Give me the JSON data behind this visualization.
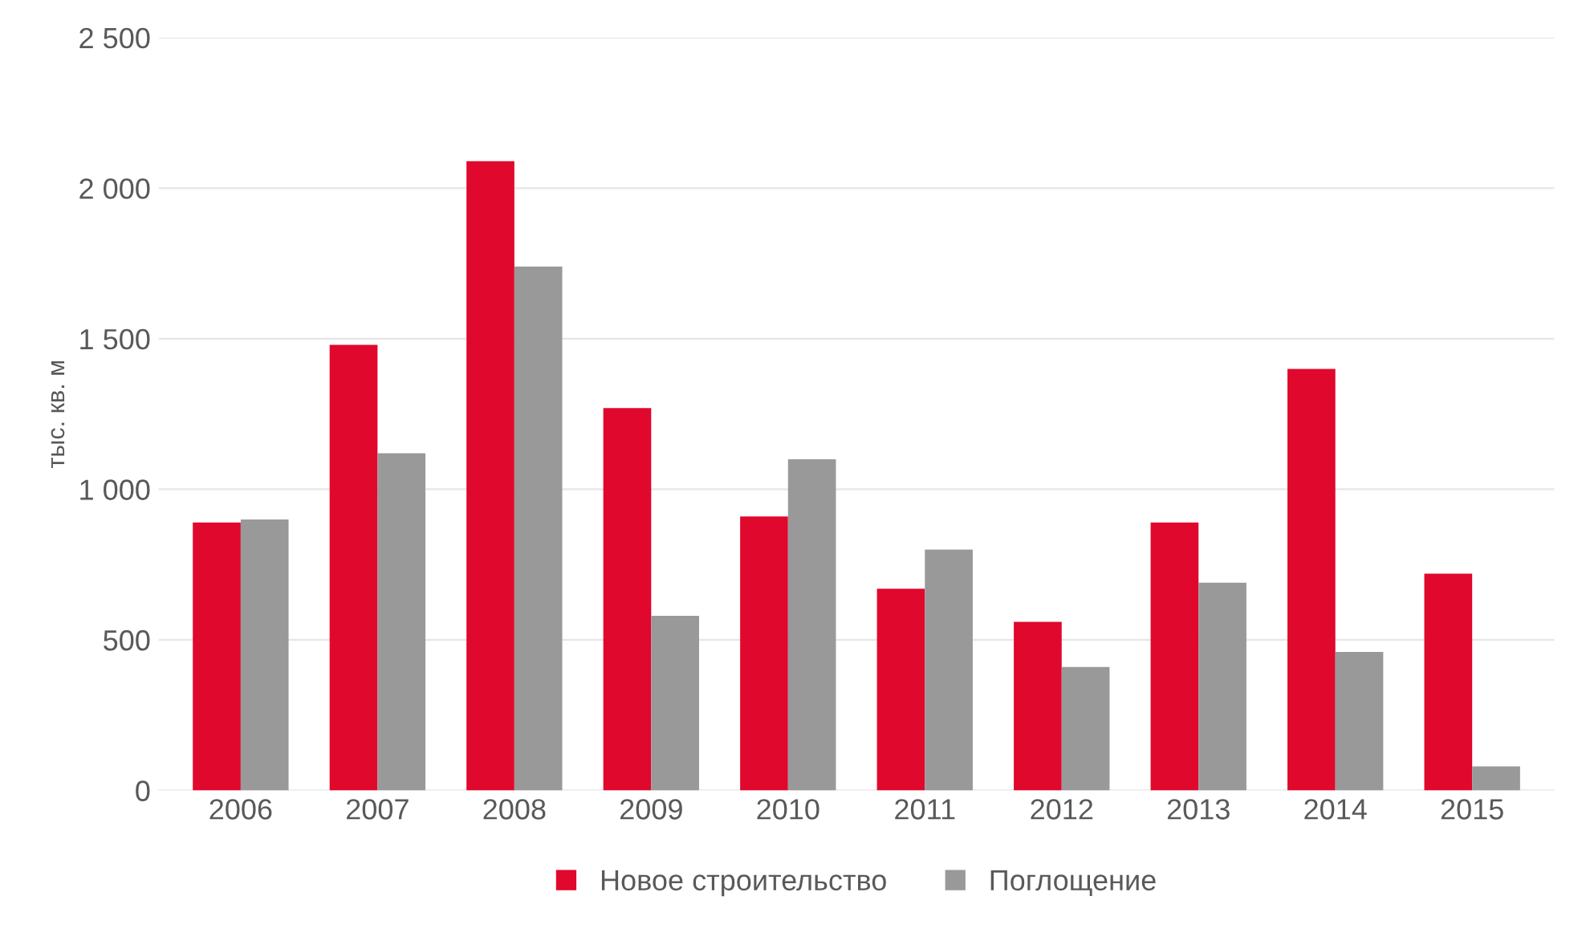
{
  "chart_data": {
    "type": "bar",
    "ylabel": "тыс. кв. м",
    "categories": [
      "2006",
      "2007",
      "2008",
      "2009",
      "2010",
      "2011",
      "2012",
      "2013",
      "2014",
      "2015"
    ],
    "series": [
      {
        "name": "Новое строительство",
        "color": "#e0082d",
        "values": [
          890,
          1480,
          2090,
          1270,
          910,
          670,
          560,
          890,
          1400,
          720
        ]
      },
      {
        "name": "Поглощение",
        "color": "#999999",
        "values": [
          900,
          1120,
          1740,
          580,
          1100,
          800,
          410,
          690,
          460,
          80
        ]
      }
    ],
    "ylim": [
      0,
      2500
    ],
    "yticks": [
      0,
      {
        "value": 500,
        "label": "500"
      },
      {
        "value": 1000,
        "label": "1 000"
      },
      {
        "value": 1500,
        "label": "1 500"
      },
      {
        "value": 2000,
        "label": "2 000"
      },
      {
        "value": 2500,
        "label": "2 500"
      }
    ],
    "grid": "y",
    "legend": "bottom"
  }
}
